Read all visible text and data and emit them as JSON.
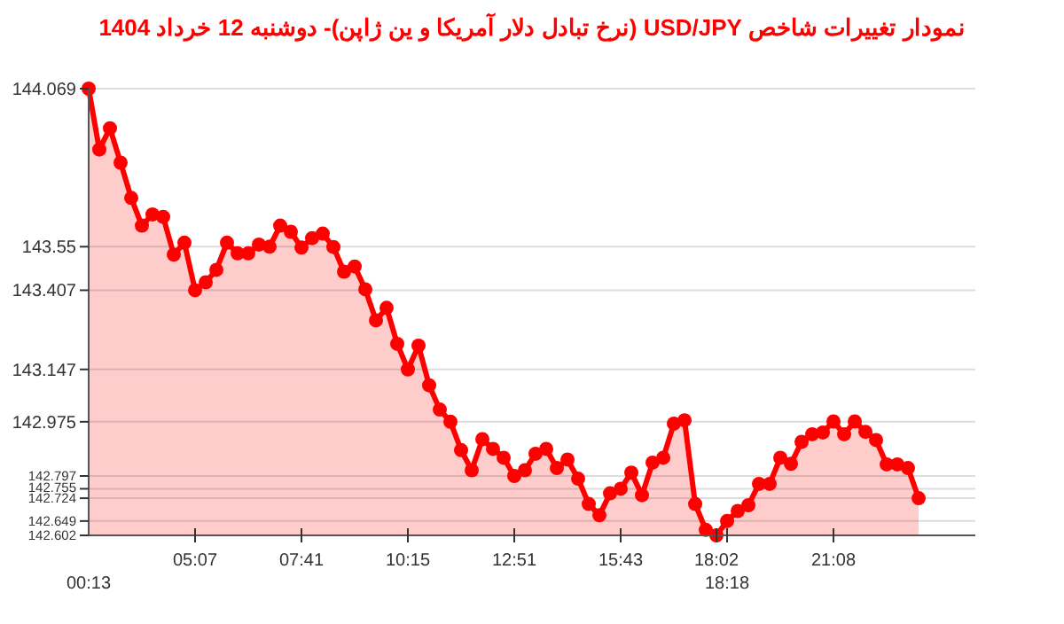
{
  "chart_data": {
    "type": "area",
    "title": "نمودار تغییرات شاخص USD/JPY (نرخ تبادل دلار آمریکا و ین ژاپن)-  دوشنبه  12 خرداد 1404",
    "categories": [
      "00:13",
      null,
      null,
      null,
      null,
      null,
      null,
      null,
      null,
      null,
      "05:07",
      null,
      null,
      null,
      null,
      null,
      null,
      null,
      null,
      null,
      "07:41",
      null,
      null,
      null,
      null,
      null,
      null,
      null,
      null,
      null,
      "10:15",
      null,
      null,
      null,
      null,
      null,
      null,
      null,
      null,
      null,
      "12:51",
      null,
      null,
      null,
      null,
      null,
      null,
      null,
      null,
      null,
      "15:43",
      null,
      null,
      null,
      null,
      null,
      null,
      null,
      null,
      "18:02",
      "18:18",
      null,
      null,
      null,
      null,
      null,
      null,
      null,
      null,
      null,
      "21:08",
      null,
      null,
      null,
      null,
      null,
      null,
      null,
      null,
      null,
      null,
      null,
      null,
      null
    ],
    "series": [
      {
        "color": "#ff0000",
        "values": [
          144.069,
          143.869,
          143.939,
          143.826,
          143.71,
          143.619,
          143.656,
          143.648,
          143.524,
          143.563,
          143.407,
          143.433,
          143.474,
          143.563,
          143.528,
          143.528,
          143.557,
          143.55,
          143.619,
          143.599,
          143.547,
          143.578,
          143.593,
          143.549,
          143.468,
          143.485,
          143.41,
          143.308,
          143.349,
          143.231,
          143.147,
          143.225,
          143.095,
          143.015,
          142.975,
          142.882,
          142.816,
          142.918,
          142.886,
          142.857,
          142.797,
          142.816,
          142.87,
          142.886,
          142.823,
          142.851,
          142.788,
          142.705,
          142.668,
          142.74,
          142.755,
          142.808,
          142.734,
          142.841,
          142.857,
          142.969,
          142.98,
          142.705,
          142.62,
          142.602,
          142.649,
          142.682,
          142.701,
          142.771,
          142.771,
          142.857,
          142.837,
          142.909,
          142.934,
          142.94,
          142.976,
          142.934,
          142.976,
          142.942,
          142.915,
          142.835,
          142.835,
          142.823,
          142.724,
          null,
          null,
          null,
          null,
          null
        ]
      }
    ],
    "ylim": [
      142.602,
      144.069
    ],
    "yticks": [
      144.069,
      143.55,
      143.407,
      143.147,
      142.975,
      142.797,
      142.755,
      142.724,
      142.649,
      142.602
    ],
    "grid": "y",
    "marker": "circle",
    "line_style": "solid"
  }
}
